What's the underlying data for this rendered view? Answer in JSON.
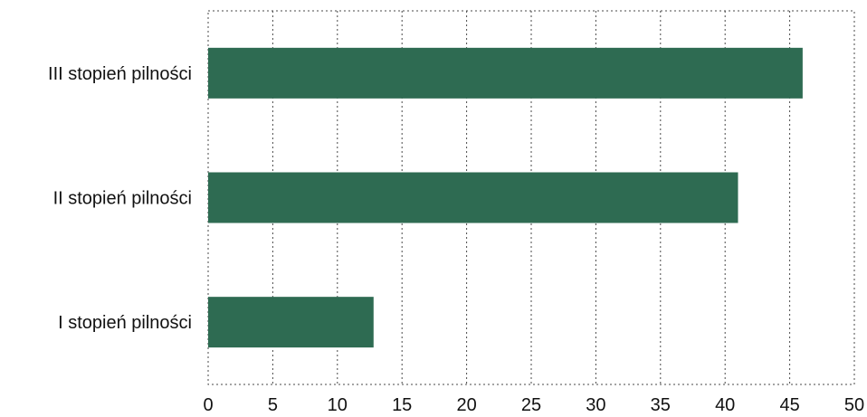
{
  "chart_data": {
    "type": "bar",
    "orientation": "horizontal",
    "categories": [
      "III stopień pilności",
      "II stopień pilności",
      "I stopień pilności"
    ],
    "values": [
      46,
      41,
      12.8
    ],
    "xlim": [
      0,
      50
    ],
    "xticks": [
      "0",
      "5",
      "10",
      "15",
      "20",
      "25",
      "30",
      "35",
      "40",
      "45",
      "50"
    ],
    "grid": true,
    "bar_color": "#2e6b52"
  }
}
